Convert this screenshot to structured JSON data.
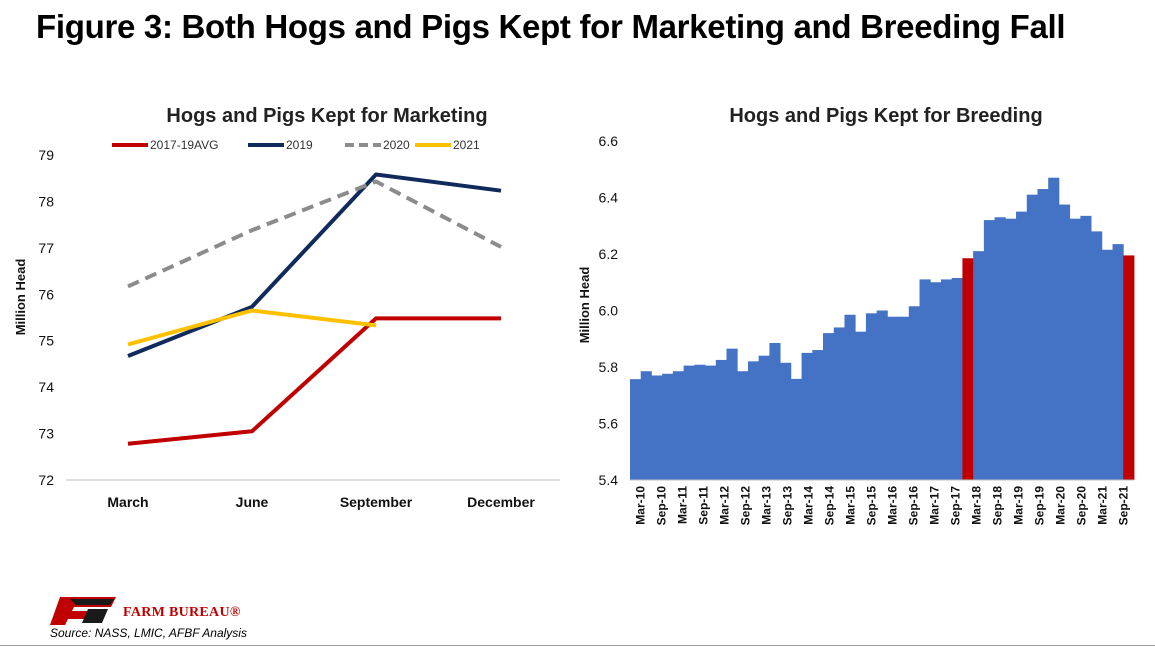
{
  "figure_title": "Figure 3: Both Hogs and Pigs Kept for Marketing and Breeding Fall",
  "source": "Source: NASS, LMIC, AFBF Analysis",
  "brand": "FARM BUREAU®",
  "colors": {
    "avg": "#c00000",
    "y2019": "#102a5c",
    "y2020": "#8c8c8c",
    "y2021": "#ffc000",
    "bar": "#4472c4",
    "bar_highlight": "#c00000"
  },
  "chart_data": [
    {
      "type": "line",
      "title": "Hogs and Pigs Kept for Marketing",
      "ylabel": "Million Head",
      "xlabel": "",
      "categories": [
        "March",
        "June",
        "September",
        "December"
      ],
      "ylim": [
        72,
        79
      ],
      "yticks": [
        "72",
        "73",
        "74",
        "75",
        "76",
        "77",
        "78",
        "79"
      ],
      "legend_position": "top",
      "grid": false,
      "series": [
        {
          "name": "2017-19AVG",
          "values": [
            72.78,
            73.05,
            75.48,
            75.48
          ],
          "color": "#c00000",
          "dash": false
        },
        {
          "name": "2019",
          "values": [
            74.67,
            75.73,
            78.58,
            78.23
          ],
          "color": "#102a5c",
          "dash": false
        },
        {
          "name": "2020",
          "values": [
            76.17,
            77.38,
            78.43,
            77.02
          ],
          "color": "#8c8c8c",
          "dash": true
        },
        {
          "name": "2021",
          "values": [
            74.92,
            75.65,
            75.33,
            null
          ],
          "color": "#ffc000",
          "dash": false
        }
      ]
    },
    {
      "type": "bar",
      "title": "Hogs and Pigs Kept for Breeding",
      "ylabel": "Million Head",
      "xlabel": "",
      "ylim": [
        5.4,
        6.6
      ],
      "yticks": [
        "5.4",
        "5.6",
        "5.8",
        "6.0",
        "6.2",
        "6.4",
        "6.6"
      ],
      "grid": false,
      "xtick_labels": [
        "Mar-10",
        "Sep-10",
        "Mar-11",
        "Sep-11",
        "Mar-12",
        "Sep-12",
        "Mar-13",
        "Sep-13",
        "Mar-14",
        "Sep-14",
        "Mar-15",
        "Sep-15",
        "Mar-16",
        "Sep-16",
        "Mar-17",
        "Sep-17",
        "Mar-18",
        "Sep-18",
        "Mar-19",
        "Sep-19",
        "Mar-20",
        "Sep-20",
        "Mar-21",
        "Sep-21"
      ],
      "values": [
        5.757,
        5.785,
        5.77,
        5.776,
        5.785,
        5.805,
        5.808,
        5.805,
        5.825,
        5.865,
        5.785,
        5.82,
        5.84,
        5.885,
        5.815,
        5.758,
        5.85,
        5.86,
        5.92,
        5.94,
        5.985,
        5.925,
        5.99,
        6.0,
        5.978,
        5.978,
        6.015,
        6.11,
        6.1,
        6.11,
        6.115,
        6.185,
        6.21,
        6.32,
        6.33,
        6.325,
        6.35,
        6.41,
        6.43,
        6.47,
        6.375,
        6.325,
        6.335,
        6.28,
        6.215,
        6.235,
        6.195
      ],
      "highlight_indices": [
        31,
        46
      ]
    }
  ]
}
